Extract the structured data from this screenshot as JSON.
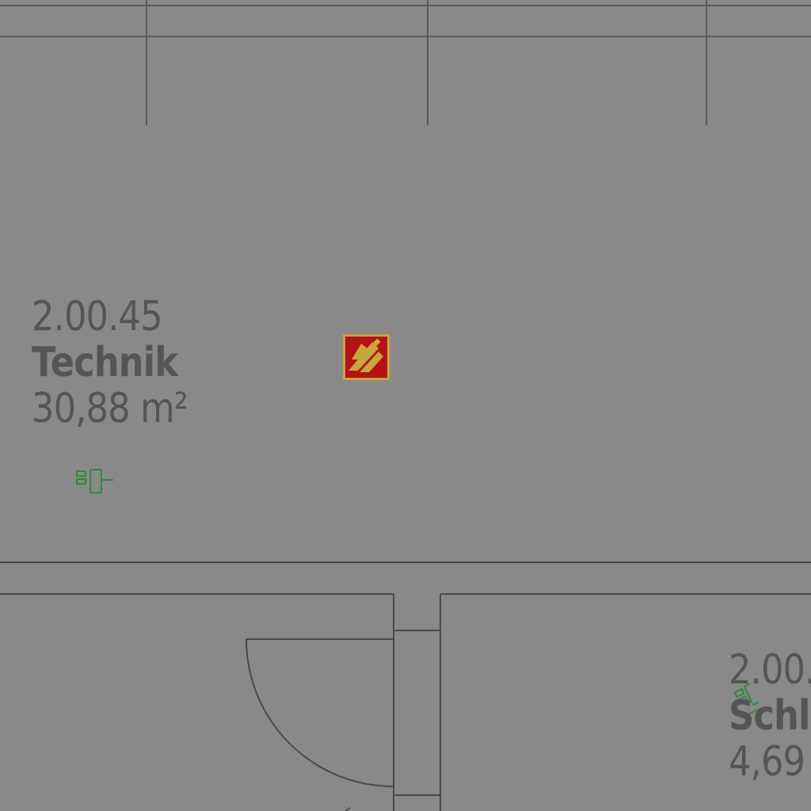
{
  "rooms": [
    {
      "number": "2.00.45",
      "name": "Technik",
      "area": "30,88 m²"
    },
    {
      "number": "2.00.",
      "name": "Schle",
      "area": "4,69"
    }
  ],
  "symbols": {
    "fire_extinguisher": "fire-extinguisher-sign-icon",
    "electrical_outlet": "electrical-outlet-icon",
    "data_outlet": "data-outlet-icon"
  },
  "colors": {
    "background": "#898989",
    "wall_line": "#4a4a4a",
    "label_text": "#555555",
    "sign_red": "#b51216",
    "sign_yellow": "#c6a83a",
    "outlet_green": "#2e8b3a"
  }
}
